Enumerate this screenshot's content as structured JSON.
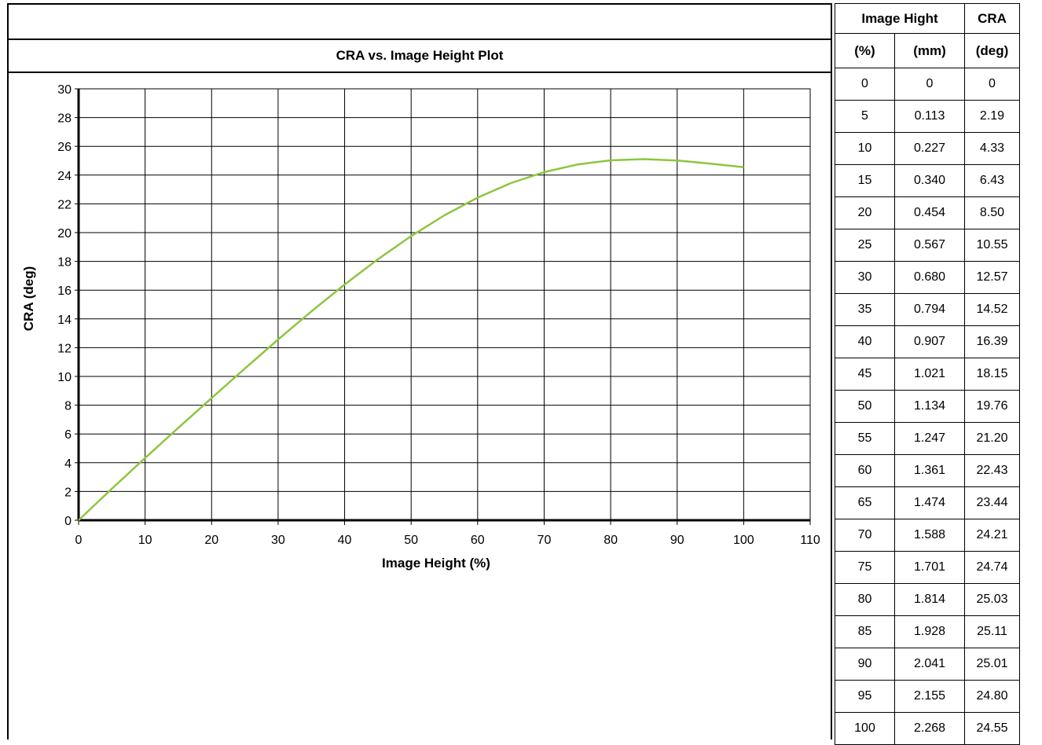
{
  "chart_data": {
    "type": "line",
    "title": "CRA vs. Image Height Plot",
    "xlabel": "Image Height (%)",
    "ylabel": "CRA (deg)",
    "xlim": [
      0,
      110
    ],
    "ylim": [
      0,
      30
    ],
    "x_ticks": [
      "0",
      "10",
      "20",
      "30",
      "40",
      "50",
      "60",
      "70",
      "80",
      "90",
      "100",
      "110"
    ],
    "y_ticks": [
      "0",
      "2",
      "4",
      "6",
      "8",
      "10",
      "12",
      "14",
      "16",
      "18",
      "20",
      "22",
      "24",
      "26",
      "28",
      "30"
    ],
    "grid": true,
    "line_color": "#8dc63f",
    "series": [
      {
        "x": [
          0,
          5,
          10,
          15,
          20,
          25,
          30,
          35,
          40,
          45,
          50,
          55,
          60,
          65,
          70,
          75,
          80,
          85,
          90,
          95,
          100
        ],
        "values": [
          0,
          2.19,
          4.33,
          6.43,
          8.5,
          10.55,
          12.57,
          14.52,
          16.39,
          18.15,
          19.76,
          21.2,
          22.43,
          23.44,
          24.21,
          24.74,
          25.03,
          25.11,
          25.01,
          24.8,
          24.55
        ]
      }
    ]
  },
  "table": {
    "header1": [
      "Image Hight",
      "CRA"
    ],
    "header2": [
      "(%)",
      "(mm)",
      "(deg)"
    ],
    "rows": [
      [
        "0",
        "0",
        "0"
      ],
      [
        "5",
        "0.113",
        "2.19"
      ],
      [
        "10",
        "0.227",
        "4.33"
      ],
      [
        "15",
        "0.340",
        "6.43"
      ],
      [
        "20",
        "0.454",
        "8.50"
      ],
      [
        "25",
        "0.567",
        "10.55"
      ],
      [
        "30",
        "0.680",
        "12.57"
      ],
      [
        "35",
        "0.794",
        "14.52"
      ],
      [
        "40",
        "0.907",
        "16.39"
      ],
      [
        "45",
        "1.021",
        "18.15"
      ],
      [
        "50",
        "1.134",
        "19.76"
      ],
      [
        "55",
        "1.247",
        "21.20"
      ],
      [
        "60",
        "1.361",
        "22.43"
      ],
      [
        "65",
        "1.474",
        "23.44"
      ],
      [
        "70",
        "1.588",
        "24.21"
      ],
      [
        "75",
        "1.701",
        "24.74"
      ],
      [
        "80",
        "1.814",
        "25.03"
      ],
      [
        "85",
        "1.928",
        "25.11"
      ],
      [
        "90",
        "2.041",
        "25.01"
      ],
      [
        "95",
        "2.155",
        "24.80"
      ],
      [
        "100",
        "2.268",
        "24.55"
      ]
    ]
  }
}
